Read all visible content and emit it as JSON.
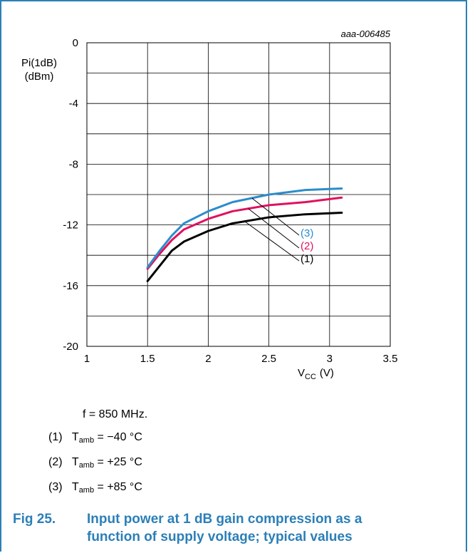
{
  "chart_data": {
    "type": "line",
    "figure_id": "aaa-006485",
    "ylabel_line1": "Pi(1dB)",
    "ylabel_line2": "(dBm)",
    "xlabel_main": "V",
    "xlabel_sub": "CC",
    "xlabel_unit": "(V)",
    "xlim": [
      1,
      3.5
    ],
    "ylim": [
      -20,
      0
    ],
    "xticks": [
      1,
      1.5,
      2,
      2.5,
      3,
      3.5
    ],
    "yticks": [
      0,
      -4,
      -8,
      -12,
      -16,
      -20
    ],
    "grid": true,
    "series": [
      {
        "name": "(1)",
        "color": "#000000",
        "x": [
          1.5,
          1.6,
          1.7,
          1.8,
          2.0,
          2.2,
          2.5,
          2.8,
          3.1
        ],
        "y": [
          -15.7,
          -14.7,
          -13.7,
          -13.1,
          -12.4,
          -11.9,
          -11.5,
          -11.3,
          -11.2
        ]
      },
      {
        "name": "(2)",
        "color": "#e0115f",
        "x": [
          1.5,
          1.6,
          1.7,
          1.8,
          2.0,
          2.2,
          2.5,
          2.8,
          3.1
        ],
        "y": [
          -14.9,
          -13.9,
          -13.0,
          -12.3,
          -11.6,
          -11.1,
          -10.7,
          -10.5,
          -10.2
        ]
      },
      {
        "name": "(3)",
        "color": "#2b8ccc",
        "x": [
          1.5,
          1.6,
          1.7,
          1.8,
          2.0,
          2.2,
          2.5,
          2.8,
          3.1
        ],
        "y": [
          -14.8,
          -13.7,
          -12.7,
          -11.9,
          -11.1,
          -10.5,
          -10.0,
          -9.7,
          -9.6
        ]
      }
    ]
  },
  "notes": {
    "freq": "f = 850 MHz.",
    "items": [
      {
        "num": "(1)",
        "t": "T",
        "sub": "amb",
        "val": " = −40 °C"
      },
      {
        "num": "(2)",
        "t": "T",
        "sub": "amb",
        "val": " = +25 °C"
      },
      {
        "num": "(3)",
        "t": "T",
        "sub": "amb",
        "val": " = +85 °C"
      }
    ]
  },
  "caption": {
    "number": "Fig 25.",
    "line1": "Input power at 1 dB gain compression as a",
    "line2": "function of supply voltage; typical values"
  },
  "colors": {
    "accent": "#2b7fb8",
    "grid": "#000000"
  }
}
